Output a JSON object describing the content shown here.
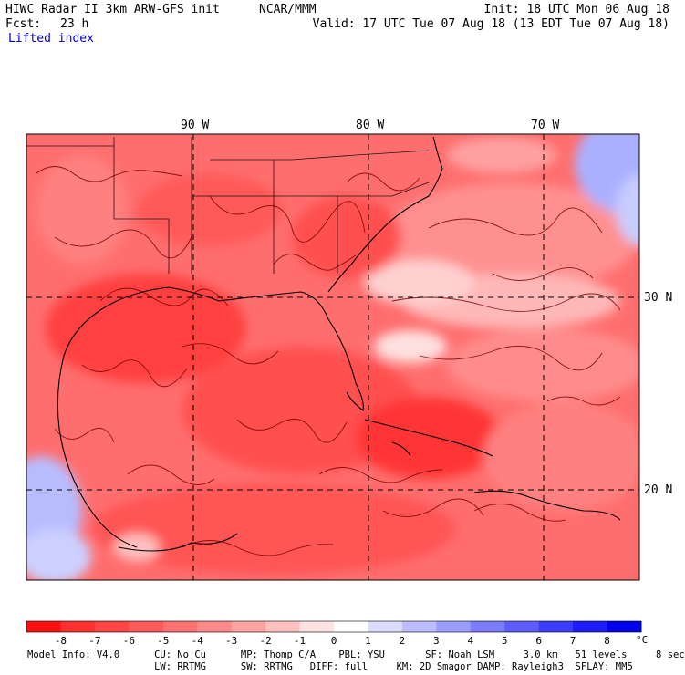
{
  "header": {
    "model_title": "HIWC Radar II 3km ARW-GFS init",
    "org": "NCAR/MMM",
    "init": "Init: 18 UTC Mon 06 Aug 18",
    "fcst_label": "Fcst:",
    "fcst_value": "23 h",
    "valid": "Valid: 17 UTC Tue 07 Aug 18 (13 EDT Tue 07 Aug 18)",
    "field": "Lifted index"
  },
  "map": {
    "lon_labels": [
      "90 W",
      "80 W",
      "70 W"
    ],
    "lat_labels": [
      "30 N",
      "20 N"
    ]
  },
  "colorbar": {
    "unit": "°C",
    "tick_labels": [
      "-8",
      "-7",
      "-6",
      "-5",
      "-4",
      "-3",
      "-2",
      "-1",
      "0",
      "1",
      "2",
      "3",
      "4",
      "5",
      "6",
      "7",
      "8"
    ],
    "colors": [
      "#ff1010",
      "#ff3030",
      "#ff4545",
      "#ff5a5a",
      "#ff7070",
      "#ff8888",
      "#ffa2a2",
      "#ffc0c0",
      "#ffe2e2",
      "#ffffff",
      "#dcdcff",
      "#bcbcff",
      "#9c9cff",
      "#7c7cff",
      "#5c5cff",
      "#3c3cff",
      "#1c1cff",
      "#0000ee"
    ]
  },
  "footer": {
    "line1": "Model Info: V4.0      CU: No Cu      MP: Thomp C/A    PBL: YSU       SF: Noah LSM     3.0 km   51 levels     8 sec",
    "line2": "                      LW: RRTMG      SW: RRTMG   DIFF: full     KM: 2D Smagor DAMP: Rayleigh3  SFLAY: MM5"
  }
}
